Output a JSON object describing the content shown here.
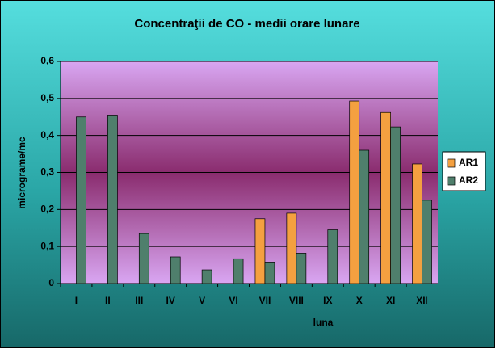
{
  "chart_data": {
    "type": "bar",
    "title": "Concentraţii de CO - medii orare lunare",
    "x_label": "luna",
    "y_label": "micrograme/mc",
    "categories": [
      "I",
      "II",
      "III",
      "IV",
      "V",
      "VI",
      "VII",
      "VIII",
      "IX",
      "X",
      "XI",
      "XII"
    ],
    "series": [
      {
        "name": "AR1",
        "color": "#f4a040",
        "values": [
          null,
          null,
          null,
          null,
          null,
          null,
          0.175,
          0.19,
          null,
          0.493,
          0.462,
          0.323
        ]
      },
      {
        "name": "AR2",
        "color": "#4f7f6c",
        "values": [
          0.45,
          0.455,
          0.135,
          0.072,
          0.037,
          0.067,
          0.058,
          0.082,
          0.145,
          0.36,
          0.423,
          0.225
        ]
      }
    ],
    "ylim": [
      0,
      0.6
    ],
    "yticks": [
      0,
      {
        "value": 0.1,
        "label": "0,1"
      },
      {
        "value": 0.2,
        "label": "0,2"
      },
      {
        "value": 0.3,
        "label": "0,3"
      },
      {
        "value": 0.4,
        "label": "0,4"
      },
      {
        "value": 0.5,
        "label": "0,5"
      },
      {
        "value": 0.6,
        "label": "0,6"
      }
    ],
    "grid": true,
    "legend": "right"
  }
}
